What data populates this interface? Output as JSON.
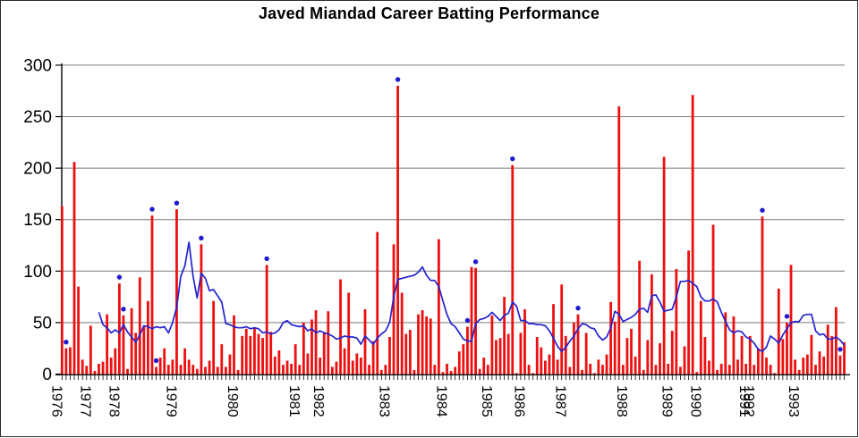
{
  "title": "Javed Miandad Career Batting Performance",
  "colors": {
    "bar": "#ee0f0f",
    "line": "#2323d0",
    "dot": "#1c1ccd",
    "grid": "#7a7a7a",
    "axis": "#000000",
    "background": "#ffffff",
    "border": "#2b2b2b"
  },
  "chart_data": {
    "type": "bar",
    "title": "Javed Miandad Career Batting Performance",
    "xlabel": "",
    "ylabel": "",
    "ylim": [
      0,
      300
    ],
    "yticks": [
      0,
      50,
      100,
      150,
      200,
      250,
      300
    ],
    "grid": true,
    "legend": "none",
    "x_unit": "innings in chronological order, grouped by year",
    "years": [
      {
        "label": "1976",
        "start_index": 0
      },
      {
        "label": "1977",
        "start_index": 7
      },
      {
        "label": "1978",
        "start_index": 14
      },
      {
        "label": "1979",
        "start_index": 28
      },
      {
        "label": "1980",
        "start_index": 43
      },
      {
        "label": "1981",
        "start_index": 58
      },
      {
        "label": "1982",
        "start_index": 64
      },
      {
        "label": "1983",
        "start_index": 80
      },
      {
        "label": "1984",
        "start_index": 94
      },
      {
        "label": "1985",
        "start_index": 105
      },
      {
        "label": "1986",
        "start_index": 113
      },
      {
        "label": "1987",
        "start_index": 123
      },
      {
        "label": "1988",
        "start_index": 138
      },
      {
        "label": "1989",
        "start_index": 149
      },
      {
        "label": "1990",
        "start_index": 156
      },
      {
        "label": "1991",
        "start_index": 168
      },
      {
        "label": "1992",
        "start_index": 169
      },
      {
        "label": "1993",
        "start_index": 180
      }
    ],
    "series": [
      {
        "name": "innings-scores",
        "type": "bar",
        "color": "#ee0f0f",
        "values": [
          163,
          25,
          26,
          206,
          85,
          14,
          8,
          47,
          3,
          10,
          12,
          58,
          16,
          25,
          88,
          57,
          5,
          64,
          40,
          94,
          46,
          71,
          154,
          7,
          16,
          25,
          9,
          14,
          160,
          9,
          25,
          14,
          9,
          5,
          126,
          7,
          13,
          71,
          7,
          29,
          7,
          19,
          57,
          4,
          37,
          44,
          37,
          45,
          39,
          35,
          106,
          41,
          17,
          23,
          9,
          13,
          10,
          29,
          9,
          50,
          20,
          53,
          62,
          16,
          41,
          61,
          7,
          12,
          92,
          25,
          79,
          13,
          20,
          16,
          63,
          9,
          32,
          138,
          4,
          9,
          36,
          126,
          280,
          79,
          39,
          43,
          4,
          58,
          62,
          56,
          54,
          9,
          131,
          2,
          10,
          3,
          7,
          22,
          29,
          46,
          104,
          103,
          5,
          16,
          9,
          57,
          33,
          35,
          75,
          39,
          203,
          1,
          40,
          63,
          9,
          1,
          36,
          26,
          13,
          19,
          68,
          14,
          87,
          37,
          7,
          50,
          58,
          4,
          40,
          10,
          1,
          14,
          9,
          19,
          70,
          51,
          260,
          9,
          35,
          44,
          17,
          110,
          4,
          33,
          97,
          9,
          30,
          211,
          10,
          42,
          102,
          7,
          27,
          120,
          271,
          2,
          71,
          36,
          13,
          145,
          4,
          10,
          60,
          9,
          56,
          14,
          37,
          10,
          37,
          9,
          25,
          153,
          16,
          9,
          1,
          83,
          34,
          50,
          106,
          14,
          4,
          16,
          19,
          38,
          9,
          22,
          17,
          48,
          37,
          65,
          18,
          31
        ]
      },
      {
        "name": "not-out-markers",
        "type": "scatter",
        "color": "#1c1ccd",
        "indices": [
          1,
          14,
          15,
          22,
          23,
          28,
          34,
          50,
          82,
          99,
          101,
          110,
          126,
          171,
          177,
          190
        ]
      },
      {
        "name": "moving-average",
        "type": "line",
        "color": "#2323d0",
        "start_index": 9,
        "values": [
          60,
          48,
          45,
          40,
          43,
          40,
          48,
          41,
          36,
          31,
          38,
          47,
          46,
          44,
          46,
          45,
          46,
          40,
          50,
          65,
          95,
          105,
          128,
          95,
          74,
          98,
          93,
          81,
          82,
          76,
          70,
          49,
          48,
          46,
          45,
          45,
          46,
          44,
          45,
          44,
          40,
          41,
          39,
          40,
          43,
          50,
          52,
          48,
          47,
          46,
          47,
          42,
          44,
          40,
          42,
          40,
          39,
          37,
          34,
          35,
          37,
          36,
          36,
          35,
          29,
          37,
          33,
          29,
          35,
          39,
          42,
          50,
          75,
          92,
          93,
          94,
          95,
          96,
          99,
          104,
          96,
          91,
          91,
          85,
          71,
          58,
          49,
          46,
          40,
          34,
          32,
          32,
          49,
          53,
          54,
          56,
          60,
          56,
          52,
          57,
          59,
          70,
          66,
          52,
          52,
          49,
          49,
          48,
          48,
          47,
          42,
          35,
          27,
          22,
          26,
          32,
          37,
          44,
          49,
          48,
          45,
          44,
          37,
          33,
          36,
          45,
          61,
          58,
          51,
          53,
          55,
          58,
          63,
          64,
          60,
          76,
          77,
          70,
          61,
          62,
          63,
          75,
          90,
          90,
          91,
          88,
          85,
          75,
          71,
          71,
          73,
          70,
          60,
          51,
          43,
          40,
          42,
          41,
          36,
          34,
          30,
          24,
          22,
          26,
          37,
          34,
          30,
          38,
          44,
          50,
          51,
          51,
          57,
          58,
          58,
          42,
          38,
          39,
          34,
          34,
          36,
          33,
          28
        ]
      }
    ]
  }
}
